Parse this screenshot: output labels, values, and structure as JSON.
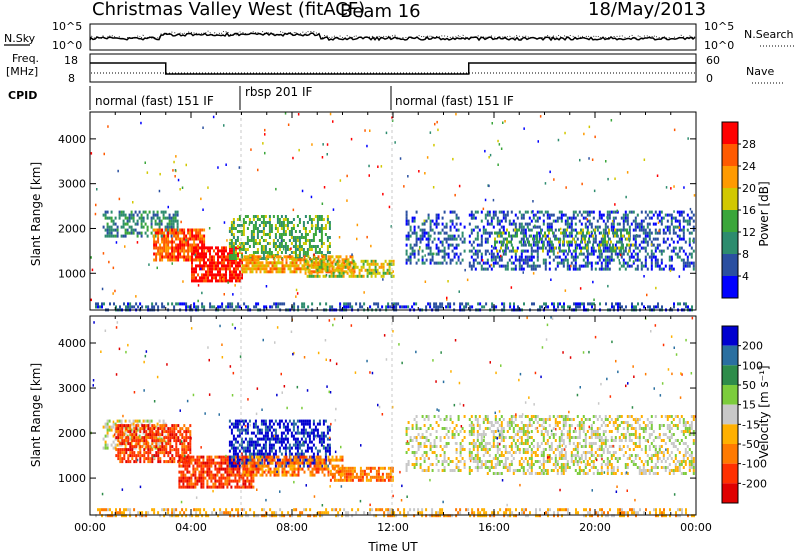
{
  "header": {
    "station": "Christmas Valley West (fitACF)",
    "beam": "Beam 16",
    "date": "18/May/2013"
  },
  "top_panels": {
    "nsky_label": "N.Sky",
    "nsky_ticks": [
      "10^5",
      "10^0"
    ],
    "nsearch_label": "N.Search",
    "nsearch_ticks": [
      "10^5",
      "10^0"
    ],
    "freq_label_line1": "Freq.",
    "freq_label_line2": "[MHz]",
    "freq_ticks": [
      "18",
      "8"
    ],
    "nave_label": "Nave",
    "nave_ticks": [
      "60",
      "0"
    ],
    "cpid_label": "CPID",
    "modes": [
      {
        "label": "normal (fast) 151 IF",
        "start_hour": 0
      },
      {
        "label": "rbsp 201 IF",
        "start_hour": 6
      },
      {
        "label": "normal (fast) 151 IF",
        "start_hour": 12
      }
    ]
  },
  "chart_data": [
    {
      "type": "heatmap",
      "name": "power",
      "ylabel": "Slant Range [km]",
      "xlim": [
        0,
        24
      ],
      "ylim": [
        180,
        4600
      ],
      "yticks": [
        1000,
        2000,
        3000,
        4000
      ],
      "yticklabels": [
        "1000",
        "2000",
        "3000",
        "4000"
      ],
      "colorbar": {
        "label": "Power [dB]",
        "ticks": [
          "28",
          "24",
          "20",
          "16",
          "12",
          "8",
          "4"
        ],
        "colors": [
          "#ff0000",
          "#ff5a00",
          "#ff9a00",
          "#d2c800",
          "#3aa63a",
          "#2d8c6e",
          "#2a4fa0",
          "#0000ff"
        ]
      },
      "echo_bands": [
        {
          "start_hour": 0.5,
          "end_hour": 3.5,
          "range_start": 1800,
          "range_end": 2400,
          "level": 5,
          "density": 0.55
        },
        {
          "start_hour": 2.5,
          "end_hour": 4.5,
          "range_start": 1300,
          "range_end": 2000,
          "level": 1,
          "density": 0.8
        },
        {
          "start_hour": 4.0,
          "end_hour": 6.0,
          "range_start": 800,
          "range_end": 1600,
          "level": 0,
          "density": 0.8
        },
        {
          "start_hour": 5.5,
          "end_hour": 9.5,
          "range_start": 1300,
          "range_end": 2300,
          "level": 4,
          "density": 0.55
        },
        {
          "start_hour": 6.0,
          "end_hour": 10.5,
          "range_start": 1050,
          "range_end": 1400,
          "level": 2,
          "density": 0.7
        },
        {
          "start_hour": 8.5,
          "end_hour": 12.0,
          "range_start": 950,
          "range_end": 1300,
          "level": 3,
          "density": 0.6
        },
        {
          "start_hour": 12.5,
          "end_hour": 14.8,
          "range_start": 1200,
          "range_end": 2400,
          "level": 6,
          "density": 0.35
        },
        {
          "start_hour": 15.0,
          "end_hour": 23.9,
          "range_start": 1100,
          "range_end": 2400,
          "level": 6,
          "density": 0.45
        },
        {
          "start_hour": 16.0,
          "end_hour": 21.5,
          "range_start": 1500,
          "range_end": 2000,
          "level": 4,
          "density": 0.3
        },
        {
          "start_hour": 0.2,
          "end_hour": 23.9,
          "range_start": 180,
          "range_end": 350,
          "level": 6,
          "density": 0.45
        }
      ]
    },
    {
      "type": "heatmap",
      "name": "velocity",
      "xlabel": "Time UT",
      "ylabel": "Slant Range [km]",
      "xlim": [
        0,
        24
      ],
      "xticks": [
        0,
        4,
        8,
        12,
        16,
        20,
        24
      ],
      "xticklabels": [
        "00:00",
        "04:00",
        "08:00",
        "12:00",
        "16:00",
        "20:00",
        "00:00"
      ],
      "ylim": [
        180,
        4600
      ],
      "yticks": [
        1000,
        2000,
        3000,
        4000
      ],
      "yticklabels": [
        "1000",
        "2000",
        "3000",
        "4000"
      ],
      "colorbar": {
        "label": "Velocity [m s⁻¹]",
        "ticks": [
          "200",
          "100",
          "50",
          "15",
          "-15",
          "-50",
          "-100",
          "-200"
        ],
        "colors": [
          "#0000d0",
          "#2a6fa0",
          "#2e8c4a",
          "#7ccc3c",
          "#c8c8c8",
          "#ffb000",
          "#ff7a00",
          "#ff3000",
          "#e00000"
        ]
      },
      "echo_bands": [
        {
          "start_hour": 0.5,
          "end_hour": 3.0,
          "range_start": 1700,
          "range_end": 2300,
          "level": 4,
          "density": 0.5
        },
        {
          "start_hour": 1.0,
          "end_hour": 4.0,
          "range_start": 1400,
          "range_end": 2200,
          "level": 7,
          "density": 0.7
        },
        {
          "start_hour": 3.5,
          "end_hour": 6.5,
          "range_start": 800,
          "range_end": 1500,
          "level": 7,
          "density": 0.8
        },
        {
          "start_hour": 5.5,
          "end_hour": 9.5,
          "range_start": 1300,
          "range_end": 2300,
          "level": 0,
          "density": 0.6
        },
        {
          "start_hour": 6.0,
          "end_hour": 10.0,
          "range_start": 1100,
          "range_end": 1500,
          "level": 6,
          "density": 0.6
        },
        {
          "start_hour": 9.5,
          "end_hour": 12.0,
          "range_start": 950,
          "range_end": 1250,
          "level": 6,
          "density": 0.7
        },
        {
          "start_hour": 12.5,
          "end_hour": 14.8,
          "range_start": 1200,
          "range_end": 2400,
          "level": 4,
          "density": 0.35
        },
        {
          "start_hour": 15.0,
          "end_hour": 23.9,
          "range_start": 1100,
          "range_end": 2400,
          "level": 4,
          "density": 0.45
        },
        {
          "start_hour": 0.2,
          "end_hour": 23.9,
          "range_start": 180,
          "range_end": 330,
          "level": 5,
          "density": 0.45
        }
      ]
    }
  ]
}
